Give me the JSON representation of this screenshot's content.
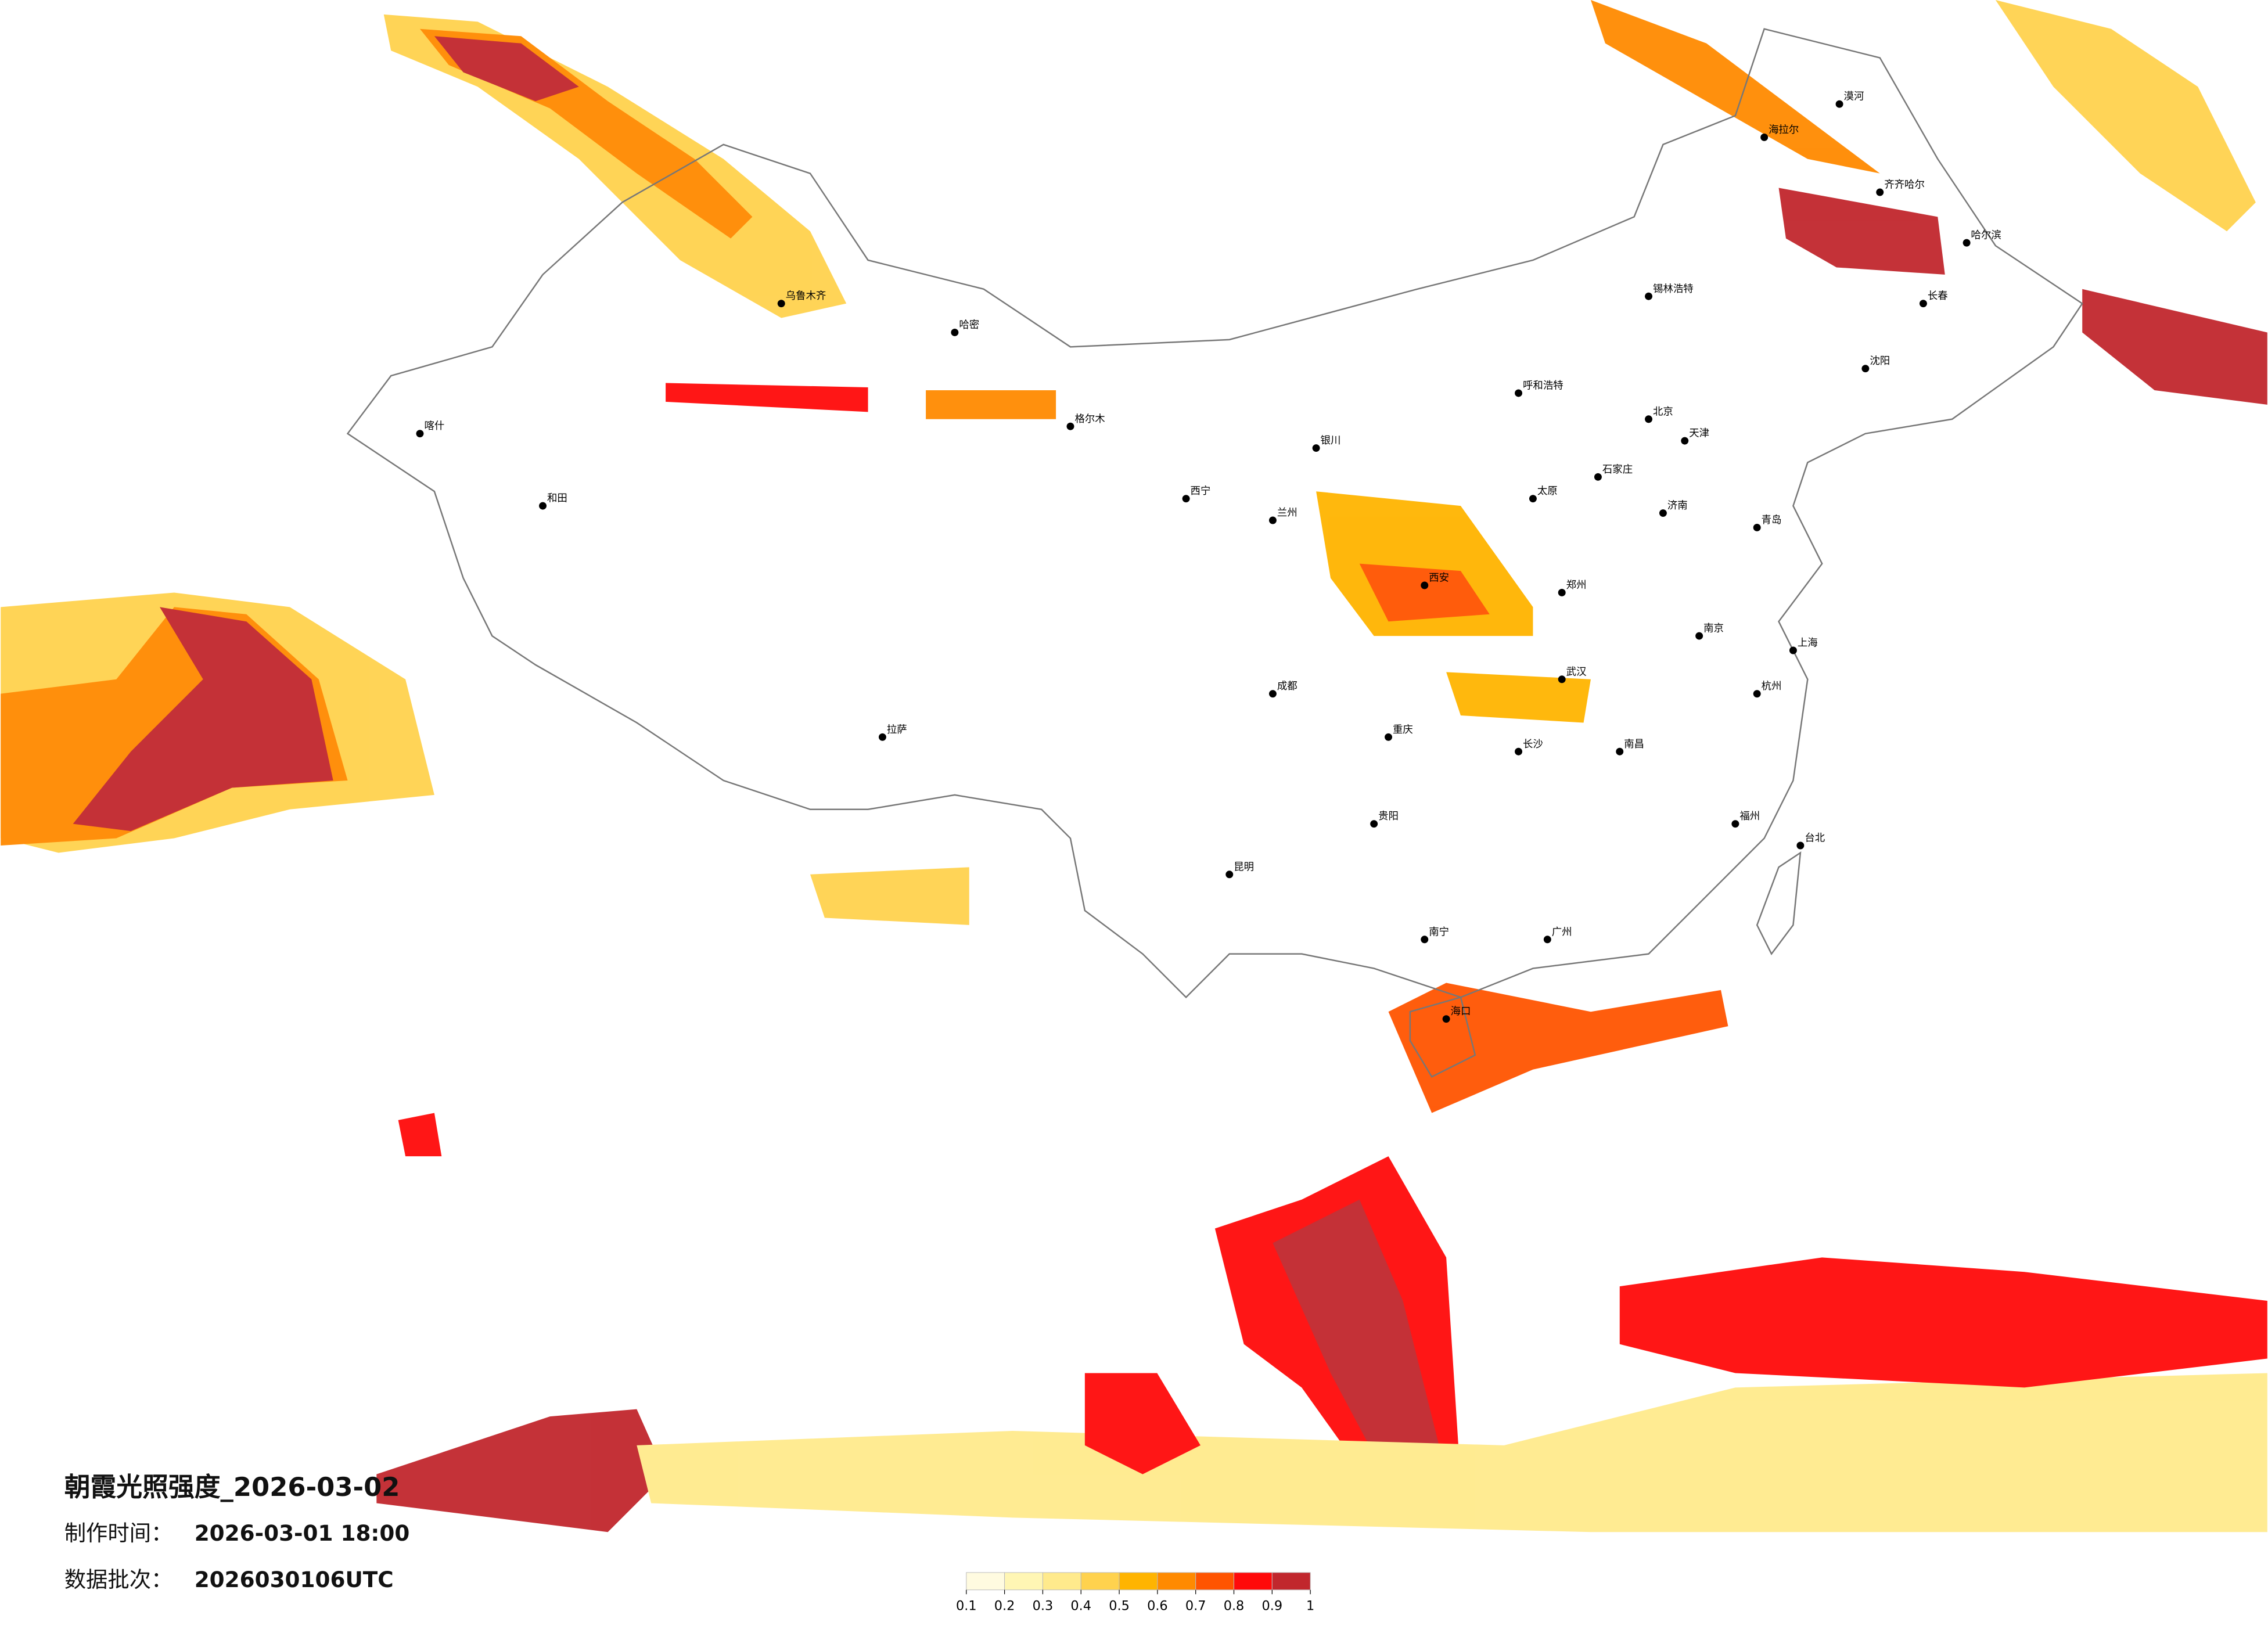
{
  "title": "朝霞光照强度_2026-03-02",
  "made_label": "制作时间：",
  "made_time": "2026-03-01 18:00",
  "batch_label": "数据批次：",
  "batch": "2026030106UTC",
  "colorbar": {
    "ticks": [
      0.1,
      0.2,
      0.3,
      0.4,
      0.5,
      0.6,
      0.7,
      0.8,
      0.9,
      1
    ],
    "colors": [
      "#fffbe0",
      "#fff6b4",
      "#ffea8c",
      "#ffd24e",
      "#ffb400",
      "#ff8a00",
      "#ff5400",
      "#ff0a0a",
      "#c1272d"
    ]
  },
  "cities": [
    "漠河",
    "海拉尔",
    "齐齐哈尔",
    "哈尔滨",
    "长春",
    "沈阳",
    "锡林浩特",
    "呼和浩特",
    "北京",
    "天津",
    "石家庄",
    "太原",
    "济南",
    "青岛",
    "郑州",
    "西安",
    "兰州",
    "西宁",
    "银川",
    "成都",
    "重庆",
    "贵阳",
    "昆明",
    "南宁",
    "广州",
    "长沙",
    "武汉",
    "南昌",
    "南京",
    "上海",
    "杭州",
    "福州",
    "台北",
    "海口",
    "拉萨",
    "乌鲁木齐",
    "和田",
    "喀什",
    "哈密",
    "格尔木"
  ]
}
